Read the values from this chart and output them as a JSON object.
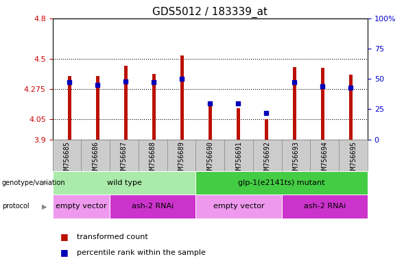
{
  "title": "GDS5012 / 183339_at",
  "samples": [
    "GSM756685",
    "GSM756686",
    "GSM756687",
    "GSM756688",
    "GSM756689",
    "GSM756690",
    "GSM756691",
    "GSM756692",
    "GSM756693",
    "GSM756694",
    "GSM756695"
  ],
  "bar_values": [
    4.37,
    4.37,
    4.45,
    4.385,
    4.525,
    4.15,
    4.13,
    4.048,
    4.44,
    4.43,
    4.38
  ],
  "percentile_values": [
    47,
    45,
    48,
    47,
    50,
    30,
    30,
    22,
    47,
    44,
    43
  ],
  "ylim_left": [
    3.9,
    4.8
  ],
  "ylim_right": [
    0,
    100
  ],
  "yticks_left": [
    3.9,
    4.05,
    4.275,
    4.5,
    4.8
  ],
  "ytick_labels_left": [
    "3.9",
    "4.05",
    "4.275",
    "4.5",
    "4.8"
  ],
  "yticks_right": [
    0,
    25,
    50,
    75,
    100
  ],
  "ytick_labels_right": [
    "0",
    "25",
    "50",
    "75",
    "100%"
  ],
  "bar_color": "#bb1100",
  "dot_color": "#0000bb",
  "genotype_groups": [
    {
      "label": "wild type",
      "start": 0,
      "end": 5,
      "color": "#aaeaaa"
    },
    {
      "label": "glp-1(e2141ts) mutant",
      "start": 5,
      "end": 11,
      "color": "#44cc44"
    }
  ],
  "protocol_groups": [
    {
      "label": "empty vector",
      "start": 0,
      "end": 2,
      "color": "#ee99ee"
    },
    {
      "label": "ash-2 RNAi",
      "start": 2,
      "end": 5,
      "color": "#cc33cc"
    },
    {
      "label": "empty vector",
      "start": 5,
      "end": 8,
      "color": "#ee99ee"
    },
    {
      "label": "ash-2 RNAi",
      "start": 8,
      "end": 11,
      "color": "#cc33cc"
    }
  ],
  "legend_items": [
    {
      "label": "transformed count",
      "color": "#bb1100"
    },
    {
      "label": "percentile rank within the sample",
      "color": "#0000bb"
    }
  ],
  "grid_dotted_lines": [
    4.05,
    4.275,
    4.5
  ],
  "bar_width": 0.12,
  "dot_size": 25,
  "background_color": "#ffffff",
  "plot_bg_color": "#ffffff",
  "left_label_color": "#cc0000",
  "right_label_color": "#0000cc",
  "title_fontsize": 11,
  "tick_fontsize": 8,
  "sample_label_fontsize": 7,
  "group_label_fontsize": 8,
  "legend_fontsize": 8
}
